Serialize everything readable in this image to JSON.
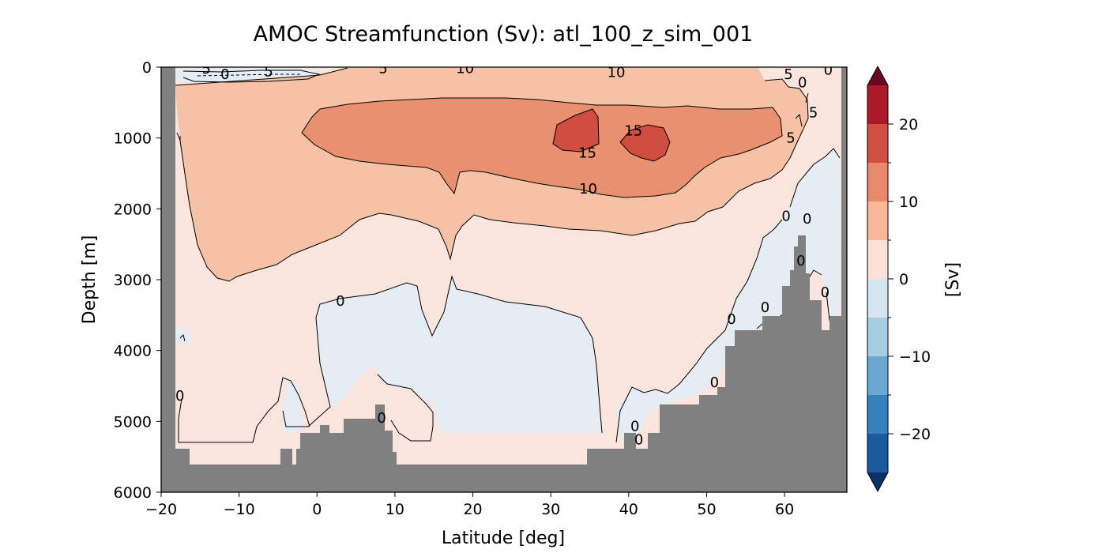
{
  "chart_data": {
    "type": "contourf",
    "title": "AMOC Streamfunction (Sv): atl_100_z_sim_001",
    "xlabel": "Latitude [deg]",
    "ylabel": "Depth [m]",
    "xlim": [
      -20,
      68
    ],
    "ylim": [
      6000,
      0
    ],
    "xticks": [
      -20,
      -10,
      0,
      10,
      20,
      30,
      40,
      50,
      60
    ],
    "xtick_labels": [
      "−20",
      "−10",
      "0",
      "10",
      "20",
      "30",
      "40",
      "50",
      "60"
    ],
    "yticks": [
      0,
      1000,
      2000,
      3000,
      4000,
      5000,
      6000
    ],
    "ytick_labels": [
      "0",
      "1000",
      "2000",
      "3000",
      "4000",
      "5000",
      "6000"
    ],
    "mask_color": "#808080",
    "colorbar": {
      "label": "[Sv]",
      "extend": "both",
      "range": [
        -25,
        25
      ],
      "levels": [
        -25,
        -20,
        -15,
        -10,
        -5,
        0,
        5,
        10,
        15,
        20,
        25
      ],
      "ticks": [
        -20,
        -10,
        0,
        10,
        20
      ],
      "tick_labels": [
        "−20",
        "−10",
        "0",
        "10",
        "20"
      ],
      "colors": [
        "#1b5a9e",
        "#3581bd",
        "#6aa8d1",
        "#a6cde2",
        "#d6e6f0",
        "#fbe1d5",
        "#f6b697",
        "#e7896a",
        "#cd5043",
        "#ac1928"
      ],
      "under_color": "#0b3165",
      "over_color": "#6a0720"
    },
    "band_colors": {
      "negative_weak": "#e3edf3",
      "positive_weak": "#f9e5de",
      "band_5_10": "#f5c2a6",
      "band_10_15": "#e8906f",
      "band_15_20": "#d04d42"
    },
    "contour_labels": [
      {
        "text": "5",
        "lat": -14.2,
        "depth": 20
      },
      {
        "text": "0",
        "lat": -11.8,
        "depth": 100
      },
      {
        "text": "5",
        "lat": -6.2,
        "depth": 60
      },
      {
        "text": "5",
        "lat": 8.5,
        "depth": 15
      },
      {
        "text": "10",
        "lat": 19.0,
        "depth": 15
      },
      {
        "text": "10",
        "lat": 38.4,
        "depth": 70
      },
      {
        "text": "5",
        "lat": 60.5,
        "depth": 100
      },
      {
        "text": "0",
        "lat": 62.3,
        "depth": 220
      },
      {
        "text": "0",
        "lat": 65.6,
        "depth": 40
      },
      {
        "text": "5",
        "lat": 63.7,
        "depth": 640
      },
      {
        "text": "15",
        "lat": 40.6,
        "depth": 900
      },
      {
        "text": "15",
        "lat": 34.7,
        "depth": 1210
      },
      {
        "text": "5",
        "lat": 60.8,
        "depth": 1000
      },
      {
        "text": "10",
        "lat": 34.8,
        "depth": 1720
      },
      {
        "text": "0",
        "lat": 60.2,
        "depth": 2100
      },
      {
        "text": "0",
        "lat": 62.9,
        "depth": 2140
      },
      {
        "text": "0",
        "lat": 3.0,
        "depth": 3300
      },
      {
        "text": "0",
        "lat": 62.1,
        "depth": 2730
      },
      {
        "text": "0",
        "lat": 65.2,
        "depth": 3180
      },
      {
        "text": "0",
        "lat": 57.5,
        "depth": 3390
      },
      {
        "text": "0",
        "lat": 53.2,
        "depth": 3560
      },
      {
        "text": "0",
        "lat": -17.6,
        "depth": 4640
      },
      {
        "text": "0",
        "lat": 51.0,
        "depth": 4450
      },
      {
        "text": "0",
        "lat": 8.3,
        "depth": 4950
      },
      {
        "text": "0",
        "lat": 40.8,
        "depth": 5070
      },
      {
        "text": "0",
        "lat": 41.3,
        "depth": 5260
      }
    ]
  }
}
